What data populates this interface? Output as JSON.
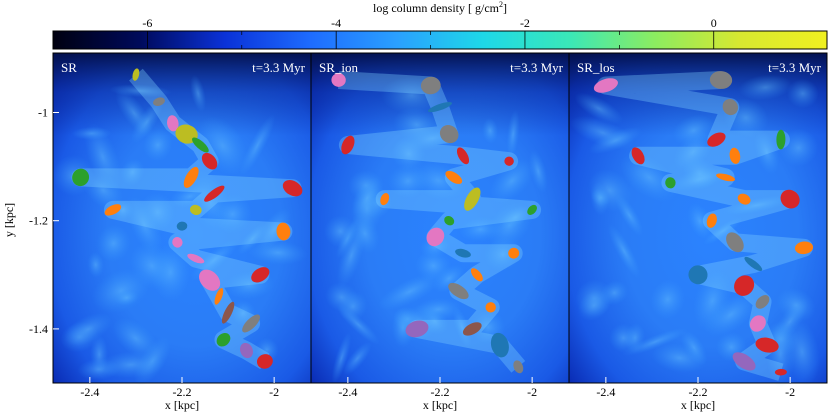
{
  "colorbar": {
    "label": "log column density [ g/cm",
    "label_sup": "2",
    "label_close": "]",
    "min": -7,
    "max": 1.2,
    "ticks": [
      {
        "value": -6,
        "label": "-6"
      },
      {
        "value": -4,
        "label": "-4"
      },
      {
        "value": -2,
        "label": "-2"
      },
      {
        "value": 0,
        "label": "0"
      }
    ],
    "minor_ticks": [
      -5,
      -3,
      -1
    ],
    "colors": [
      "#000010",
      "#000a5a",
      "#0a32d8",
      "#1e6cff",
      "#2aa0ff",
      "#1ed8e8",
      "#3ae8b8",
      "#8cec60",
      "#d8e830",
      "#f0f020"
    ]
  },
  "chart_data": [
    {
      "type": "heatmap",
      "title": "SR",
      "time": "t=3.3 Myr",
      "xlabel": "x [kpc]",
      "ylabel": "y [kpc]",
      "xlim": [
        -2.48,
        -1.92
      ],
      "ylim": [
        -1.5,
        -0.89
      ],
      "xticks": [
        {
          "value": -2.4,
          "label": "-2.4"
        },
        {
          "value": -2.2,
          "label": "-2.2"
        },
        {
          "value": -2.0,
          "label": "-2"
        }
      ],
      "yticks": [
        {
          "value": -1.0,
          "label": "-1"
        },
        {
          "value": -1.2,
          "label": "-1.2"
        },
        {
          "value": -1.4,
          "label": "-1.4"
        }
      ],
      "clumps": [
        {
          "x": -2.25,
          "y": -0.98,
          "c": "#7f7f7f"
        },
        {
          "x": -2.22,
          "y": -1.02,
          "c": "#e377c2"
        },
        {
          "x": -2.19,
          "y": -1.04,
          "c": "#bcbd22"
        },
        {
          "x": -2.16,
          "y": -1.06,
          "c": "#2ca02c"
        },
        {
          "x": -2.14,
          "y": -1.09,
          "c": "#d62728"
        },
        {
          "x": -2.18,
          "y": -1.12,
          "c": "#ff7f0e"
        },
        {
          "x": -2.13,
          "y": -1.15,
          "c": "#d62728"
        },
        {
          "x": -2.17,
          "y": -1.18,
          "c": "#bcbd22"
        },
        {
          "x": -2.2,
          "y": -1.21,
          "c": "#1f77b4"
        },
        {
          "x": -2.21,
          "y": -1.24,
          "c": "#e377c2"
        },
        {
          "x": -2.17,
          "y": -1.27,
          "c": "#e377c2"
        },
        {
          "x": -2.14,
          "y": -1.31,
          "c": "#e377c2"
        },
        {
          "x": -2.12,
          "y": -1.34,
          "c": "#ff7f0e"
        },
        {
          "x": -2.1,
          "y": -1.37,
          "c": "#8c564b"
        },
        {
          "x": -2.11,
          "y": -1.42,
          "c": "#2ca02c"
        },
        {
          "x": -2.06,
          "y": -1.44,
          "c": "#9467bd"
        },
        {
          "x": -2.02,
          "y": -1.46,
          "c": "#d62728"
        },
        {
          "x": -2.05,
          "y": -1.39,
          "c": "#7f7f7f"
        },
        {
          "x": -2.35,
          "y": -1.18,
          "c": "#ff7f0e"
        },
        {
          "x": -2.42,
          "y": -1.12,
          "c": "#2ca02c"
        },
        {
          "x": -1.98,
          "y": -1.22,
          "c": "#ff7f0e"
        },
        {
          "x": -2.03,
          "y": -1.3,
          "c": "#d62728"
        },
        {
          "x": -2.3,
          "y": -0.93,
          "c": "#bcbd22"
        },
        {
          "x": -1.96,
          "y": -1.14,
          "c": "#d62728"
        }
      ]
    },
    {
      "type": "heatmap",
      "title": "SR_ion",
      "time": "t=3.3 Myr",
      "xlabel": "x [kpc]",
      "ylabel": "",
      "xlim": [
        -2.48,
        -1.92
      ],
      "ylim": [
        -1.5,
        -0.89
      ],
      "xticks": [
        {
          "value": -2.4,
          "label": "-2.4"
        },
        {
          "value": -2.2,
          "label": "-2.2"
        },
        {
          "value": -2.0,
          "label": "-2"
        }
      ],
      "yticks": [],
      "clumps": [
        {
          "x": -2.22,
          "y": -0.95,
          "c": "#7f7f7f"
        },
        {
          "x": -2.2,
          "y": -0.99,
          "c": "#1f77b4"
        },
        {
          "x": -2.18,
          "y": -1.04,
          "c": "#7f7f7f"
        },
        {
          "x": -2.15,
          "y": -1.08,
          "c": "#d62728"
        },
        {
          "x": -2.17,
          "y": -1.12,
          "c": "#ff7f0e"
        },
        {
          "x": -2.13,
          "y": -1.16,
          "c": "#bcbd22"
        },
        {
          "x": -2.18,
          "y": -1.2,
          "c": "#2ca02c"
        },
        {
          "x": -2.21,
          "y": -1.23,
          "c": "#e377c2"
        },
        {
          "x": -2.15,
          "y": -1.26,
          "c": "#1f77b4"
        },
        {
          "x": -2.12,
          "y": -1.3,
          "c": "#ff7f0e"
        },
        {
          "x": -2.16,
          "y": -1.33,
          "c": "#7f7f7f"
        },
        {
          "x": -2.09,
          "y": -1.36,
          "c": "#ff7f0e"
        },
        {
          "x": -2.13,
          "y": -1.4,
          "c": "#8c564b"
        },
        {
          "x": -2.07,
          "y": -1.43,
          "c": "#1f77b4"
        },
        {
          "x": -2.03,
          "y": -1.47,
          "c": "#7f7f7f"
        },
        {
          "x": -2.4,
          "y": -1.06,
          "c": "#d62728"
        },
        {
          "x": -2.32,
          "y": -1.16,
          "c": "#ff7f0e"
        },
        {
          "x": -2.0,
          "y": -1.18,
          "c": "#2ca02c"
        },
        {
          "x": -2.04,
          "y": -1.26,
          "c": "#ff7f0e"
        },
        {
          "x": -2.42,
          "y": -0.94,
          "c": "#e377c2"
        },
        {
          "x": -2.05,
          "y": -1.09,
          "c": "#d62728"
        },
        {
          "x": -2.25,
          "y": -1.4,
          "c": "#9467bd"
        }
      ]
    },
    {
      "type": "heatmap",
      "title": "SR_los",
      "time": "t=3.3 Myr",
      "xlabel": "x [kpc]",
      "ylabel": "",
      "xlim": [
        -2.48,
        -1.92
      ],
      "ylim": [
        -1.5,
        -0.89
      ],
      "xticks": [
        {
          "value": -2.4,
          "label": "-2.4"
        },
        {
          "value": -2.2,
          "label": "-2.2"
        },
        {
          "value": -2.0,
          "label": "-2"
        }
      ],
      "yticks": [],
      "clumps": [
        {
          "x": -2.15,
          "y": -0.94,
          "c": "#7f7f7f"
        },
        {
          "x": -2.13,
          "y": -0.99,
          "c": "#7f7f7f"
        },
        {
          "x": -2.16,
          "y": -1.05,
          "c": "#d62728"
        },
        {
          "x": -2.12,
          "y": -1.08,
          "c": "#ff7f0e"
        },
        {
          "x": -2.14,
          "y": -1.12,
          "c": "#ff7f0e"
        },
        {
          "x": -2.1,
          "y": -1.16,
          "c": "#ff7f0e"
        },
        {
          "x": -2.17,
          "y": -1.2,
          "c": "#ff7f0e"
        },
        {
          "x": -2.12,
          "y": -1.24,
          "c": "#7f7f7f"
        },
        {
          "x": -2.08,
          "y": -1.28,
          "c": "#1f77b4"
        },
        {
          "x": -2.1,
          "y": -1.32,
          "c": "#d62728"
        },
        {
          "x": -2.06,
          "y": -1.35,
          "c": "#7f7f7f"
        },
        {
          "x": -2.07,
          "y": -1.39,
          "c": "#e377c2"
        },
        {
          "x": -2.05,
          "y": -1.43,
          "c": "#d62728"
        },
        {
          "x": -2.1,
          "y": -1.46,
          "c": "#9467bd"
        },
        {
          "x": -2.02,
          "y": -1.48,
          "c": "#d62728"
        },
        {
          "x": -2.4,
          "y": -0.95,
          "c": "#e377c2"
        },
        {
          "x": -2.33,
          "y": -1.08,
          "c": "#d62728"
        },
        {
          "x": -2.0,
          "y": -1.16,
          "c": "#d62728"
        },
        {
          "x": -1.97,
          "y": -1.25,
          "c": "#ff7f0e"
        },
        {
          "x": -2.26,
          "y": -1.13,
          "c": "#2ca02c"
        },
        {
          "x": -2.2,
          "y": -1.3,
          "c": "#1f77b4"
        },
        {
          "x": -2.02,
          "y": -1.05,
          "c": "#2ca02c"
        }
      ]
    }
  ]
}
